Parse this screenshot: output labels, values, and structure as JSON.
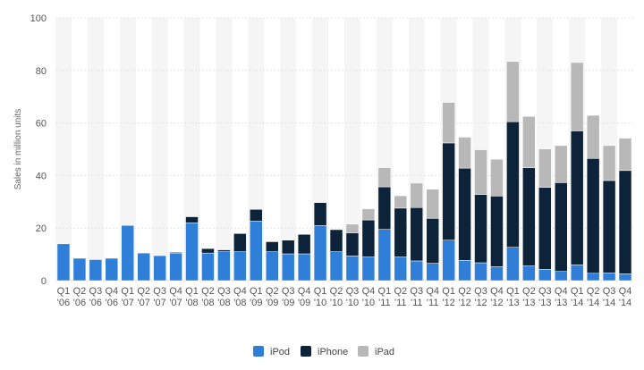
{
  "chart_data": {
    "type": "bar",
    "stacked": true,
    "ylabel": "Sales in million units",
    "ylim": [
      0,
      100
    ],
    "yticks": [
      0,
      20,
      40,
      60,
      80,
      100
    ],
    "grid": "vertical bands",
    "legend_position": "bottom-center",
    "categories": [
      [
        "Q1",
        "'06"
      ],
      [
        "Q2",
        "'06"
      ],
      [
        "Q3",
        "'06"
      ],
      [
        "Q4",
        "'06"
      ],
      [
        "Q1",
        "'07"
      ],
      [
        "Q2",
        "'07"
      ],
      [
        "Q3",
        "'07"
      ],
      [
        "Q4",
        "'07"
      ],
      [
        "Q1",
        "'08"
      ],
      [
        "Q2",
        "'08"
      ],
      [
        "Q3",
        "'08"
      ],
      [
        "Q4",
        "'08"
      ],
      [
        "Q1",
        "'09"
      ],
      [
        "Q2",
        "'09"
      ],
      [
        "Q3",
        "'09"
      ],
      [
        "Q4",
        "'09"
      ],
      [
        "Q1",
        "'10"
      ],
      [
        "Q2",
        "'10"
      ],
      [
        "Q3",
        "'10"
      ],
      [
        "Q4",
        "'10"
      ],
      [
        "Q1",
        "'11"
      ],
      [
        "Q2",
        "'11"
      ],
      [
        "Q3",
        "'11"
      ],
      [
        "Q4",
        "'11"
      ],
      [
        "Q1",
        "'12"
      ],
      [
        "Q2",
        "'12"
      ],
      [
        "Q3",
        "'12"
      ],
      [
        "Q4",
        "'12"
      ],
      [
        "Q1",
        "'13"
      ],
      [
        "Q2",
        "'13"
      ],
      [
        "Q3",
        "'13"
      ],
      [
        "Q4",
        "'13"
      ],
      [
        "Q1",
        "'14"
      ],
      [
        "Q2",
        "'14"
      ],
      [
        "Q3",
        "'14"
      ],
      [
        "Q4",
        "'14"
      ]
    ],
    "series": [
      {
        "name": "iPod",
        "color": "#2f7ed8",
        "values": [
          14,
          8.5,
          8,
          8.5,
          21,
          10.5,
          9.5,
          10.5,
          22,
          10.5,
          11,
          11,
          22.7,
          11,
          10.2,
          10.2,
          21,
          11,
          9.4,
          9,
          19.5,
          9,
          7.5,
          6.6,
          15.4,
          7.7,
          6.8,
          5.3,
          12.7,
          5.6,
          4.3,
          3.5,
          6,
          2.8,
          2.9,
          2.6
        ]
      },
      {
        "name": "iPhone",
        "color": "#0d233a",
        "values": [
          0,
          0,
          0,
          0,
          0,
          0,
          0,
          0.3,
          2.3,
          1.7,
          0.7,
          6.9,
          4.4,
          3.8,
          5.2,
          7.4,
          8.7,
          8.4,
          8.8,
          14.1,
          16.2,
          18.6,
          20.3,
          17.1,
          37,
          35.1,
          26,
          26.9,
          47.8,
          37.4,
          31.2,
          33.8,
          51,
          43.7,
          35.2,
          39.3
        ]
      },
      {
        "name": "iPad",
        "color": "#b8b8b8",
        "values": [
          0,
          0,
          0,
          0,
          0,
          0,
          0,
          0,
          0,
          0,
          0,
          0,
          0,
          0,
          0,
          0,
          0,
          0,
          3.3,
          4.2,
          7.3,
          4.7,
          9.3,
          11.1,
          15.4,
          11.8,
          17,
          14,
          22.9,
          19.5,
          14.6,
          14.1,
          26,
          16.4,
          13.3,
          12.3
        ]
      }
    ]
  }
}
